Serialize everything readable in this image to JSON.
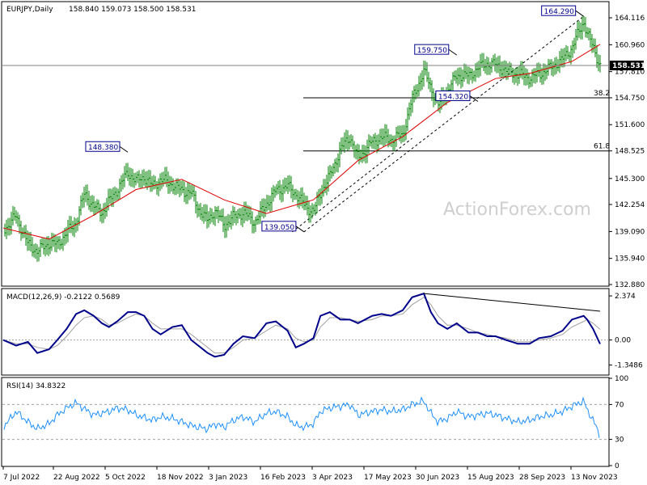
{
  "chart_data": [
    {
      "type": "candlestick",
      "name": "price",
      "title": "EURJPY,Daily",
      "ohlc_label": "158.840 159.073 158.500 158.531",
      "last_price": 158.531,
      "ylim": [
        132.88,
        167.27
      ],
      "y_ticks": [
        "164.116",
        "160.960",
        "157.810",
        "154.750",
        "151.600",
        "148.525",
        "145.300",
        "142.254",
        "139.090",
        "135.940",
        "132.880"
      ],
      "x_ticks": [
        "7 Jul 2022",
        "22 Aug 2022",
        "5 Oct 2022",
        "18 Nov 2022",
        "3 Jan 2023",
        "16 Feb 2023",
        "3 Apr 2023",
        "17 May 2023",
        "30 Jun 2023",
        "15 Aug 2023",
        "28 Sep 2023",
        "13 Nov 2023"
      ],
      "price_series": {
        "x": [
          "2022-07-07",
          "2022-07-18",
          "2022-07-28",
          "2022-08-05",
          "2022-08-15",
          "2022-08-22",
          "2022-08-30",
          "2022-09-07",
          "2022-09-14",
          "2022-09-22",
          "2022-09-29",
          "2022-10-05",
          "2022-10-12",
          "2022-10-21",
          "2022-10-28",
          "2022-11-04",
          "2022-11-11",
          "2022-11-18",
          "2022-11-28",
          "2022-12-06",
          "2022-12-14",
          "2022-12-20",
          "2022-12-28",
          "2023-01-03",
          "2023-01-11",
          "2023-01-19",
          "2023-01-27",
          "2023-02-06",
          "2023-02-16",
          "2023-02-24",
          "2023-03-06",
          "2023-03-13",
          "2023-03-20",
          "2023-03-28",
          "2023-04-03",
          "2023-04-11",
          "2023-04-20",
          "2023-04-28",
          "2023-05-05",
          "2023-05-17",
          "2023-05-25",
          "2023-06-02",
          "2023-06-12",
          "2023-06-20",
          "2023-06-30",
          "2023-07-06",
          "2023-07-12",
          "2023-07-20",
          "2023-07-28",
          "2023-08-07",
          "2023-08-15",
          "2023-08-23",
          "2023-08-30",
          "2023-09-08",
          "2023-09-18",
          "2023-09-28",
          "2023-10-06",
          "2023-10-16",
          "2023-10-26",
          "2023-11-03",
          "2023-11-13",
          "2023-11-16",
          "2023-11-21",
          "2023-11-27"
        ],
        "close": [
          139.2,
          140.9,
          137.6,
          136.8,
          137.7,
          137.6,
          138.9,
          140.2,
          143.5,
          142.0,
          141.3,
          142.6,
          144.0,
          146.0,
          145.0,
          145.5,
          144.4,
          145.2,
          144.6,
          143.9,
          143.6,
          141.8,
          140.3,
          141.6,
          139.8,
          140.8,
          141.3,
          140.2,
          142.3,
          143.9,
          144.4,
          143.5,
          142.2,
          141.4,
          143.6,
          145.6,
          148.7,
          150.2,
          147.6,
          149.6,
          150.1,
          149.9,
          150.4,
          154.6,
          157.8,
          156.0,
          153.8,
          155.5,
          157.4,
          157.3,
          158.2,
          158.8,
          158.6,
          157.9,
          157.5,
          157.1,
          157.5,
          158.3,
          159.2,
          160.6,
          163.7,
          162.3,
          160.7,
          158.531
        ]
      },
      "moving_average": {
        "x": [
          "2022-07-07",
          "2022-08-15",
          "2022-09-22",
          "2022-10-28",
          "2022-12-06",
          "2023-01-11",
          "2023-02-16",
          "2023-03-28",
          "2023-05-05",
          "2023-06-12",
          "2023-07-20",
          "2023-08-30",
          "2023-09-28",
          "2023-11-03",
          "2023-11-27"
        ],
        "values": [
          139.5,
          138.2,
          141.0,
          144.0,
          145.2,
          142.8,
          141.2,
          142.8,
          147.4,
          150.2,
          154.2,
          157.0,
          157.6,
          159.0,
          161.0
        ]
      },
      "annotations": [
        {
          "label": "164.290",
          "x": "2023-11-13",
          "y": 164.29
        },
        {
          "label": "159.750",
          "x": "2023-07-28",
          "y": 159.75
        },
        {
          "label": "154.320",
          "x": "2023-08-15",
          "y": 154.32
        },
        {
          "label": "148.380",
          "x": "2022-10-21",
          "y": 148.38
        },
        {
          "label": "139.050",
          "x": "2023-03-20",
          "y": 139.05
        }
      ],
      "levels": [
        {
          "label": "38.2",
          "y": 154.75
        },
        {
          "label": "61.8",
          "y": 148.525
        }
      ],
      "trendline": {
        "from": [
          "2023-03-20",
          139.05
        ],
        "to": [
          "2023-11-13",
          164.29
        ]
      },
      "watermark": "ActionForex.com",
      "grid": false
    },
    {
      "type": "line",
      "name": "macd",
      "title": "MACD(12,26,9) -0.2122 0.5689",
      "ylim": [
        -1.8,
        2.55
      ],
      "y_ticks": [
        "2.374",
        "0.00",
        "-1.3486"
      ],
      "macd": [
        0.0,
        -0.3,
        -0.1,
        -0.7,
        -0.5,
        0.0,
        0.6,
        1.4,
        1.6,
        1.3,
        0.9,
        0.7,
        1.0,
        1.5,
        1.5,
        1.3,
        0.6,
        0.3,
        0.7,
        0.8,
        0.0,
        -0.3,
        -0.7,
        -0.9,
        -0.8,
        -0.2,
        0.2,
        0.1,
        0.9,
        1.0,
        0.5,
        -0.4,
        -0.2,
        0.1,
        1.3,
        1.5,
        1.1,
        1.1,
        0.9,
        1.3,
        1.4,
        1.3,
        1.6,
        2.3,
        2.5,
        1.5,
        0.9,
        0.6,
        0.9,
        0.4,
        0.4,
        0.2,
        0.2,
        0.0,
        -0.2,
        -0.2,
        0.1,
        0.2,
        0.5,
        1.1,
        1.3,
        1.1,
        0.6,
        -0.2122
      ],
      "signal": [
        0.0,
        -0.2,
        -0.2,
        -0.4,
        -0.5,
        -0.3,
        0.2,
        0.8,
        1.2,
        1.3,
        1.1,
        0.8,
        0.9,
        1.2,
        1.4,
        1.3,
        0.9,
        0.6,
        0.6,
        0.6,
        0.3,
        0.0,
        -0.4,
        -0.7,
        -0.7,
        -0.4,
        0.0,
        0.1,
        0.5,
        0.8,
        0.6,
        0.1,
        -0.1,
        0.0,
        0.7,
        1.2,
        1.2,
        1.1,
        1.0,
        1.1,
        1.3,
        1.3,
        1.4,
        1.9,
        2.3,
        1.9,
        1.3,
        0.8,
        0.8,
        0.6,
        0.4,
        0.3,
        0.2,
        0.1,
        -0.1,
        -0.1,
        0.0,
        0.1,
        0.3,
        0.7,
        1.0,
        1.1,
        0.9,
        0.5689
      ],
      "divergence_line": {
        "from": [
          "2023-06-30",
          2.5
        ],
        "to": [
          "2023-11-27",
          1.55
        ]
      }
    },
    {
      "type": "line",
      "name": "rsi",
      "title": "RSI(14) 34.8322",
      "ylim": [
        0,
        100
      ],
      "y_ticks": [
        "100",
        "70",
        "30",
        "0"
      ],
      "guides": [
        70,
        30
      ],
      "values": [
        44,
        62,
        50,
        42,
        48,
        58,
        66,
        72,
        65,
        58,
        60,
        62,
        66,
        64,
        58,
        55,
        52,
        56,
        54,
        50,
        46,
        44,
        42,
        48,
        44,
        52,
        56,
        50,
        60,
        62,
        56,
        46,
        44,
        48,
        62,
        66,
        68,
        70,
        58,
        62,
        64,
        62,
        64,
        70,
        74,
        60,
        50,
        54,
        62,
        56,
        58,
        60,
        58,
        54,
        50,
        52,
        56,
        58,
        62,
        68,
        74,
        64,
        52,
        34.8322
      ]
    }
  ]
}
